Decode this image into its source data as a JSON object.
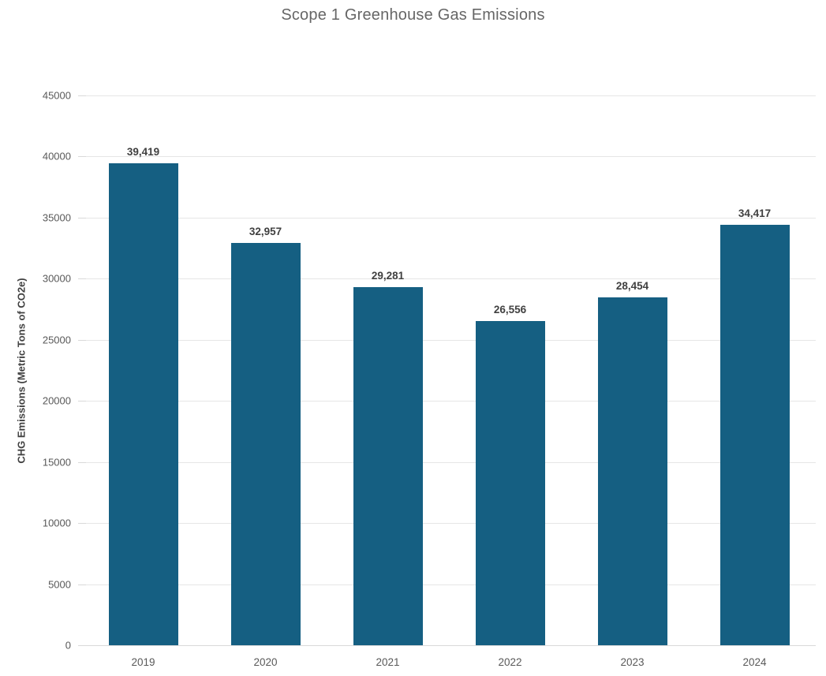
{
  "chart_data": {
    "type": "bar",
    "title": "Scope 1 Greenhouse Gas Emissions",
    "ylabel": "CHG Emissions (Metric Tons of CO2e)",
    "xlabel": "",
    "categories": [
      "2019",
      "2020",
      "2021",
      "2022",
      "2023",
      "2024"
    ],
    "values": [
      39419,
      32957,
      29281,
      26556,
      28454,
      34417
    ],
    "value_labels": [
      "39,419",
      "32,957",
      "29,281",
      "26,556",
      "28,454",
      "34,417"
    ],
    "ylim": [
      0,
      45000
    ],
    "ytick_step": 5000,
    "ytick_labels": [
      "0",
      "5000",
      "10000",
      "15000",
      "20000",
      "25000",
      "30000",
      "35000",
      "40000",
      "45000"
    ],
    "grid": "horizontal",
    "legend": "none",
    "colors": {
      "bar": "#155f82",
      "gridline": "#e6e6e6",
      "axis_line": "#d9d9d9",
      "title_text": "#666666",
      "axis_title_text": "#404040",
      "tick_text": "#595959",
      "value_label_text": "#404040",
      "background": "#ffffff"
    }
  }
}
